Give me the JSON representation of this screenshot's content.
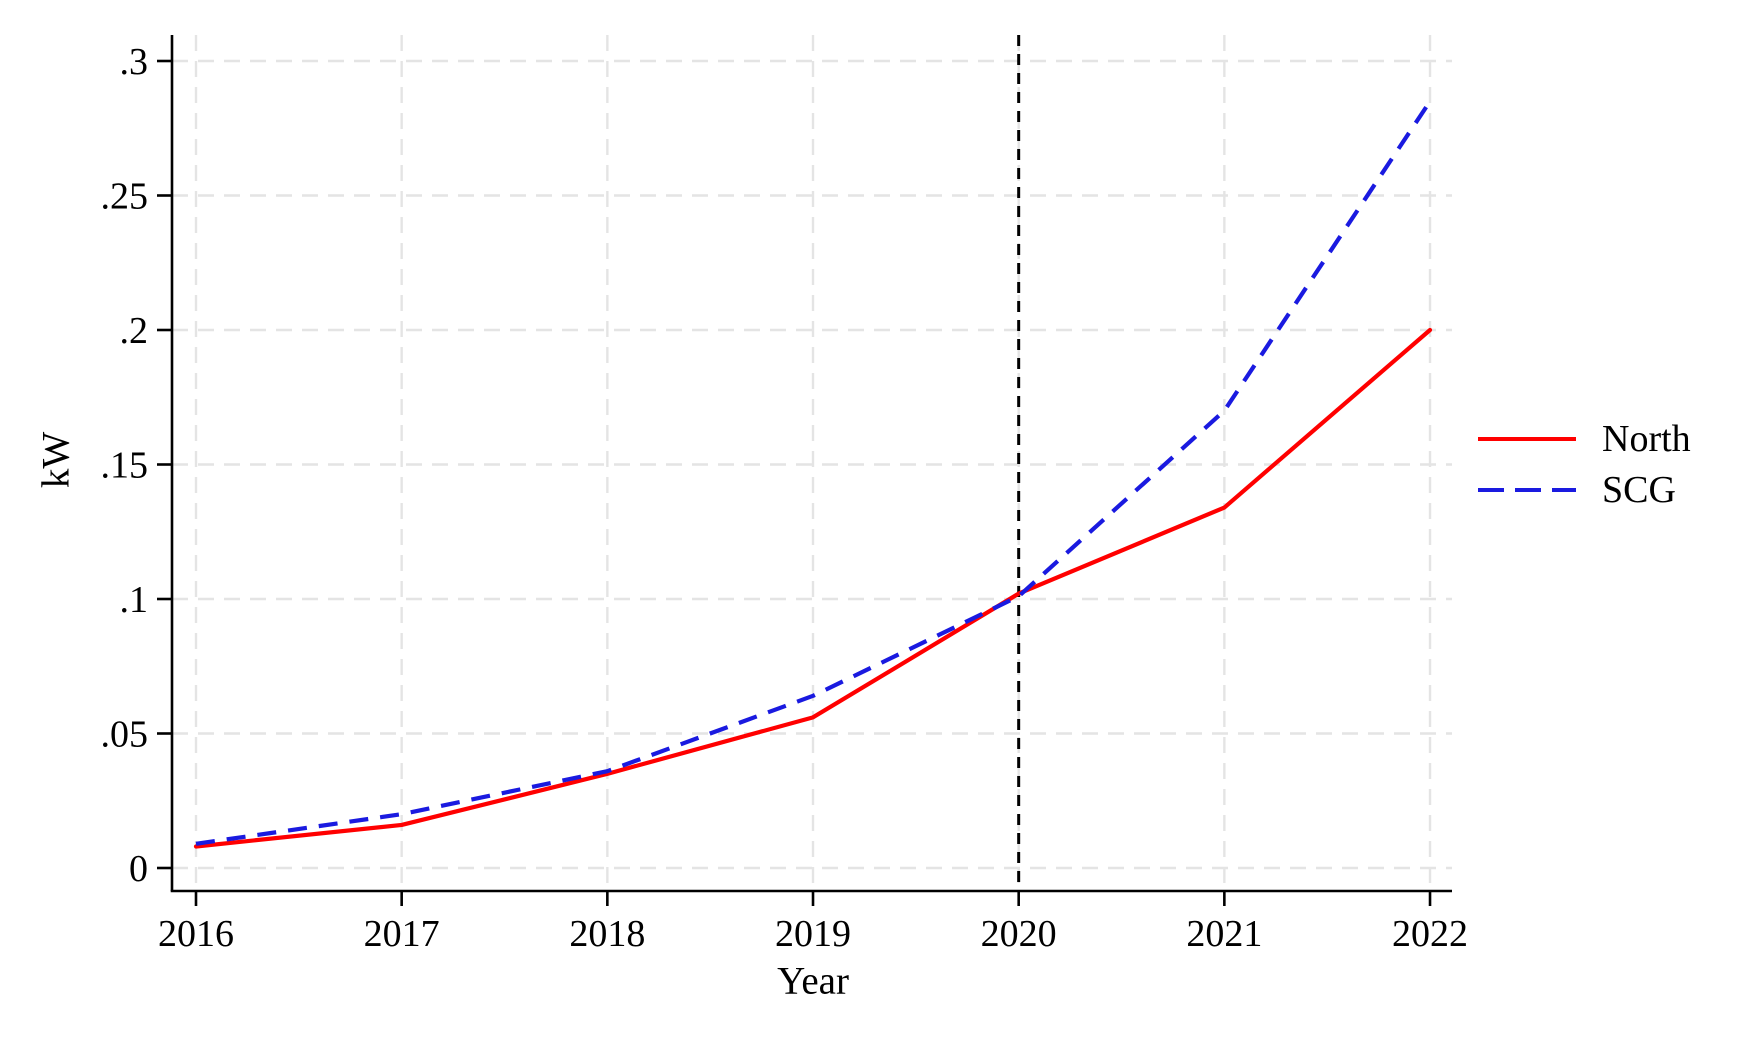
{
  "chart_data": {
    "type": "line",
    "title": "",
    "xlabel": "Year",
    "ylabel": "kW",
    "x": [
      2016,
      2017,
      2018,
      2019,
      2020,
      2021,
      2022
    ],
    "x_tick_labels": [
      "2016",
      "2017",
      "2018",
      "2019",
      "2020",
      "2021",
      "2022"
    ],
    "y_ticks": [
      {
        "label": "0",
        "value": 0
      },
      {
        "label": ".05",
        "value": 0.05
      },
      {
        "label": ".1",
        "value": 0.1
      },
      {
        "label": ".15",
        "value": 0.15
      },
      {
        "label": ".2",
        "value": 0.2
      },
      {
        "label": ".25",
        "value": 0.25
      },
      {
        "label": ".3",
        "value": 0.3
      }
    ],
    "xlim": [
      2016,
      2022
    ],
    "ylim": [
      0,
      0.3
    ],
    "grid": true,
    "grid_style": "light-gray-dashed",
    "legend_position": "right-middle",
    "series": [
      {
        "name": "North",
        "color": "#ff0000",
        "style": "solid",
        "values": [
          0.008,
          0.016,
          0.035,
          0.056,
          0.102,
          0.134,
          0.2
        ]
      },
      {
        "name": "SCG",
        "color": "#1a1ae0",
        "style": "dashed",
        "values": [
          0.009,
          0.02,
          0.036,
          0.064,
          0.101,
          0.17,
          0.285
        ]
      }
    ],
    "reference_line": {
      "axis": "x",
      "value": 2020,
      "style": "dashed",
      "color": "#000000"
    }
  }
}
